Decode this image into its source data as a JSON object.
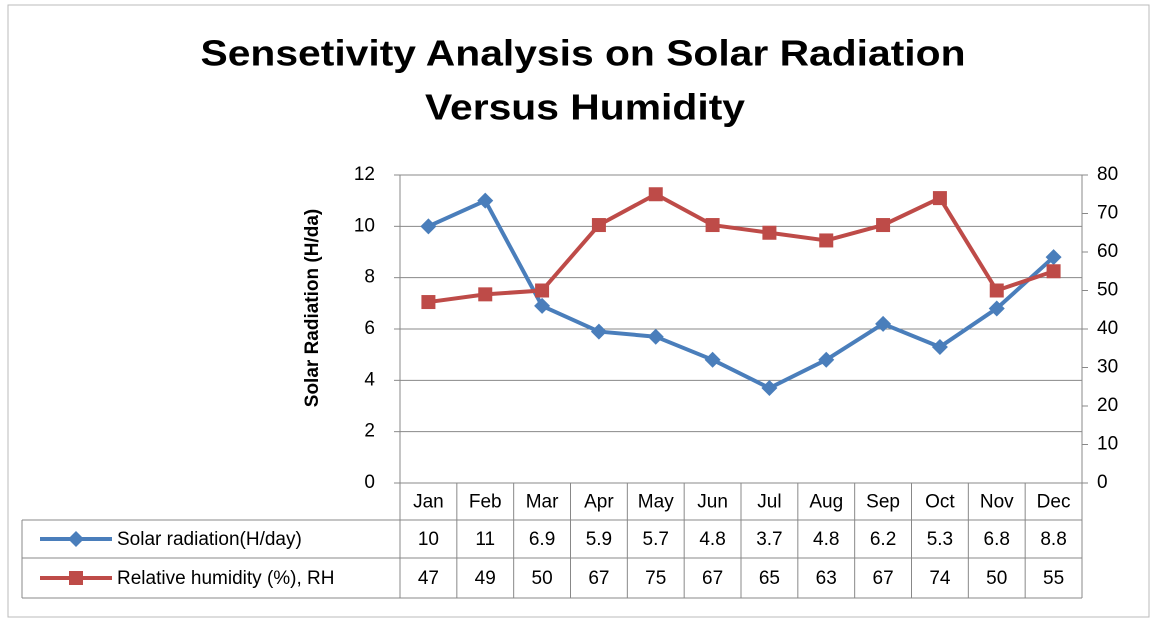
{
  "chart_data": {
    "type": "line",
    "title": [
      "Sensetivity Analysis on Solar Radiation",
      "Versus Humidity"
    ],
    "y_label": "Solar Radiation (H/da)",
    "categories": [
      "Jan",
      "Feb",
      "Mar",
      "Apr",
      "May",
      "Jun",
      "Jul",
      "Aug",
      "Sep",
      "Oct",
      "Nov",
      "Dec"
    ],
    "series": [
      {
        "name": "Solar radiation(H/day)",
        "color": "#4a7ebb",
        "marker": "diamond",
        "values": [
          10,
          11,
          6.9,
          5.9,
          5.7,
          4.8,
          3.7,
          4.8,
          6.2,
          5.3,
          6.8,
          8.8
        ]
      },
      {
        "name": "Relative humidity (%), RH",
        "color": "#be4b48",
        "marker": "square",
        "axis": "y2",
        "values": [
          47,
          49,
          50,
          67,
          75,
          67,
          65,
          63,
          67,
          74,
          50,
          55
        ]
      }
    ],
    "ylim": [
      0,
      12
    ],
    "yticks": [
      0,
      2,
      4,
      6,
      8,
      10,
      12
    ],
    "y2lim": [
      0,
      80
    ],
    "y2ticks": [
      0,
      10,
      20,
      30,
      40,
      50,
      60,
      70,
      80
    ],
    "grid": true,
    "data_table": true
  }
}
